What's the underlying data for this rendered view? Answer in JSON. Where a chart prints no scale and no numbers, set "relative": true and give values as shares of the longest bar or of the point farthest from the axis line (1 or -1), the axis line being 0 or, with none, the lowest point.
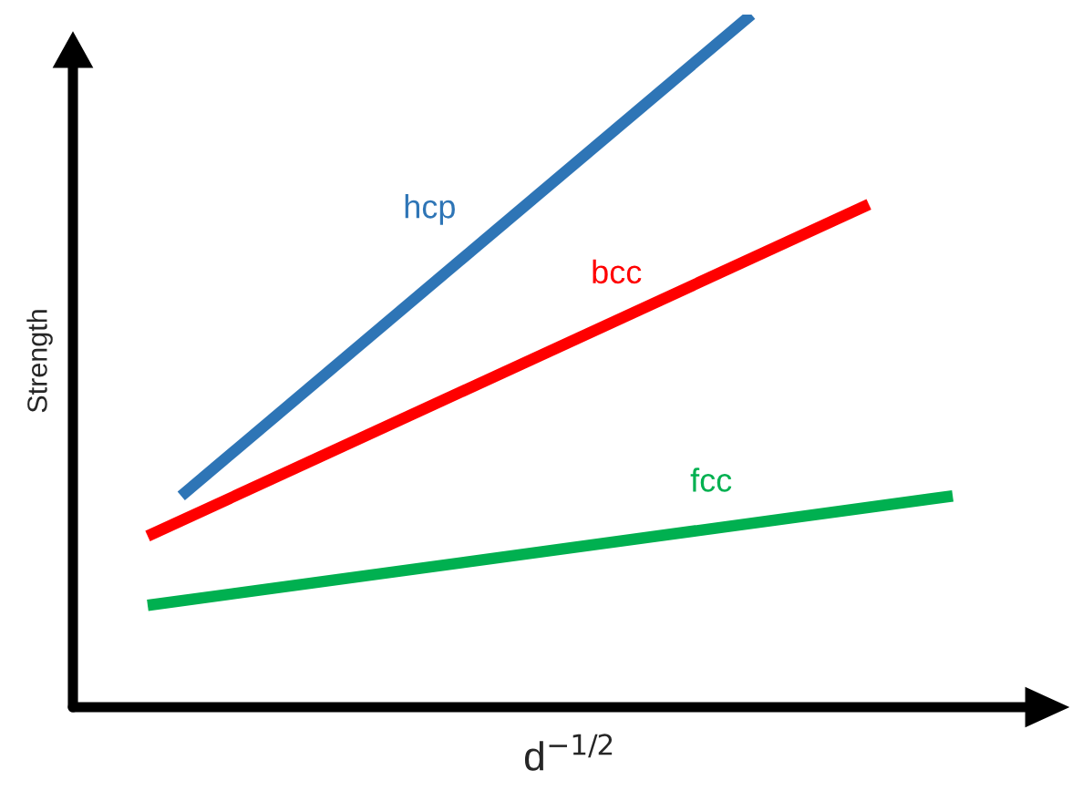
{
  "chart_data": {
    "type": "line",
    "relative": true,
    "xlabel": "d$^{−1/2}$",
    "ylabel": "Strength",
    "categories": [
      null,
      null,
      null,
      null,
      null,
      null,
      null,
      null,
      null,
      null,
      null,
      null,
      null,
      null,
      null,
      null,
      null,
      null,
      null,
      null,
      null,
      null,
      null,
      null,
      null,
      null,
      null,
      null,
      null,
      null,
      null,
      null,
      null,
      null,
      null,
      null,
      null,
      null,
      null,
      null,
      null,
      null,
      null,
      null,
      null,
      null,
      null,
      null,
      null
    ],
    "series": [
      {
        "name": "hcp",
        "color": "#2e75b6",
        "values": [
          null,
          null,
          0.305,
          null,
          null,
          null,
          null,
          null,
          null,
          null,
          null,
          null,
          null,
          null,
          null,
          null,
          null,
          null,
          null,
          null,
          null,
          null,
          null,
          null,
          null,
          null,
          null,
          null,
          null,
          null,
          null,
          null,
          null,
          null,
          null,
          null,
          1.0,
          null,
          null,
          null,
          null,
          null,
          null,
          null,
          null,
          null,
          null,
          null,
          null
        ]
      },
      {
        "name": "bcc",
        "color": "#ff0000",
        "values": [
          0.247,
          null,
          null,
          null,
          null,
          null,
          null,
          null,
          null,
          null,
          null,
          null,
          null,
          null,
          null,
          null,
          null,
          null,
          null,
          null,
          null,
          null,
          null,
          null,
          null,
          null,
          null,
          null,
          null,
          null,
          null,
          null,
          null,
          null,
          null,
          null,
          null,
          null,
          null,
          null,
          null,
          null,
          null,
          0.726,
          null,
          null,
          null,
          null,
          null
        ]
      },
      {
        "name": "fcc",
        "color": "#00b050",
        "values": [
          0.147,
          null,
          null,
          null,
          null,
          null,
          null,
          null,
          null,
          null,
          null,
          null,
          null,
          null,
          null,
          null,
          null,
          null,
          null,
          null,
          null,
          null,
          null,
          null,
          null,
          null,
          null,
          null,
          null,
          null,
          null,
          null,
          null,
          null,
          null,
          null,
          null,
          null,
          null,
          null,
          null,
          null,
          null,
          null,
          null,
          null,
          null,
          null,
          0.305
        ]
      }
    ]
  }
}
